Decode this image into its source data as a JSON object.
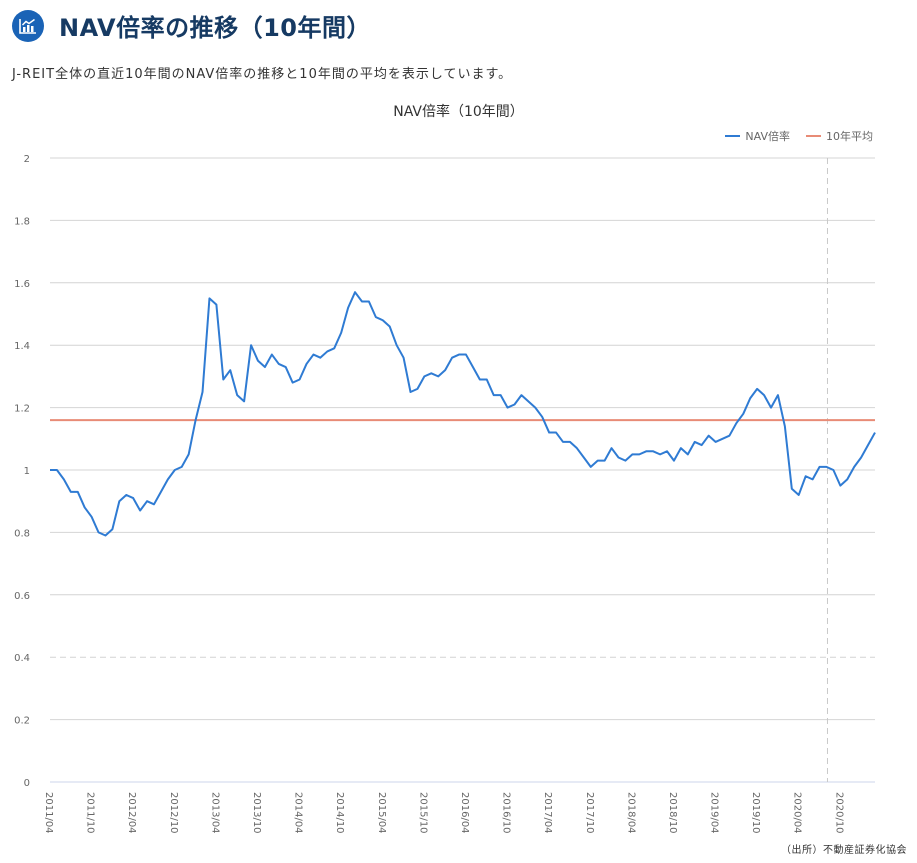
{
  "header": {
    "icon": "bar-chart-icon",
    "title": "NAV倍率の推移（10年間）",
    "subtitle": "J-REIT全体の直近10年間のNAV倍率の推移と10年間の平均を表示しています。"
  },
  "colors": {
    "accent": "#1a63b6",
    "title": "#163a63",
    "nav_line": "#2f7bd3",
    "avg_line": "#e88b76",
    "grid": "#d4d4d4"
  },
  "legend": {
    "nav": "NAV倍率",
    "avg": "10年平均"
  },
  "source": "（出所）不動産証券化協会",
  "chart_data": {
    "type": "line",
    "title": "NAV倍率（10年間）",
    "xlabel": "",
    "ylabel": "",
    "ylim": [
      0,
      2
    ],
    "yticks": [
      "0",
      "0.2",
      "0.4",
      "0.6",
      "0.8",
      "1",
      "1.2",
      "1.4",
      "1.6",
      "1.8",
      "2"
    ],
    "xtick_labels": [
      "2011/04",
      "2011/10",
      "2012/04",
      "2012/10",
      "2013/04",
      "2013/10",
      "2014/04",
      "2014/10",
      "2015/04",
      "2015/10",
      "2016/04",
      "2016/10",
      "2017/04",
      "2017/10",
      "2018/04",
      "2018/10",
      "2019/04",
      "2019/10",
      "2020/04",
      "2020/10"
    ],
    "grid": true,
    "legend_position": "top-right",
    "x_start": "2011/04",
    "x_end": "2021/03",
    "series": [
      {
        "name": "NAV倍率",
        "values": [
          1.0,
          1.0,
          0.97,
          0.93,
          0.93,
          0.88,
          0.85,
          0.8,
          0.79,
          0.81,
          0.9,
          0.92,
          0.91,
          0.87,
          0.9,
          0.89,
          0.93,
          0.97,
          1.0,
          1.01,
          1.05,
          1.16,
          1.25,
          1.55,
          1.53,
          1.29,
          1.32,
          1.24,
          1.22,
          1.4,
          1.35,
          1.33,
          1.37,
          1.34,
          1.33,
          1.28,
          1.29,
          1.34,
          1.37,
          1.36,
          1.38,
          1.39,
          1.44,
          1.52,
          1.57,
          1.54,
          1.54,
          1.49,
          1.48,
          1.46,
          1.4,
          1.36,
          1.25,
          1.26,
          1.3,
          1.31,
          1.3,
          1.32,
          1.36,
          1.37,
          1.37,
          1.33,
          1.29,
          1.29,
          1.24,
          1.24,
          1.2,
          1.21,
          1.24,
          1.22,
          1.2,
          1.17,
          1.12,
          1.12,
          1.09,
          1.09,
          1.07,
          1.04,
          1.01,
          1.03,
          1.03,
          1.07,
          1.04,
          1.03,
          1.05,
          1.05,
          1.06,
          1.06,
          1.05,
          1.06,
          1.03,
          1.07,
          1.05,
          1.09,
          1.08,
          1.11,
          1.09,
          1.1,
          1.11,
          1.15,
          1.18,
          1.23,
          1.26,
          1.24,
          1.2,
          1.24,
          1.14,
          0.94,
          0.92,
          0.98,
          0.97,
          1.01,
          1.01,
          1.0,
          0.95,
          0.97,
          1.01,
          1.04,
          1.08,
          1.12
        ]
      },
      {
        "name": "10年平均",
        "constant": 1.16
      }
    ],
    "annotations": {
      "dashed_horizontal_at": 0.4,
      "hover_crosshair_month": "2020/08"
    }
  }
}
